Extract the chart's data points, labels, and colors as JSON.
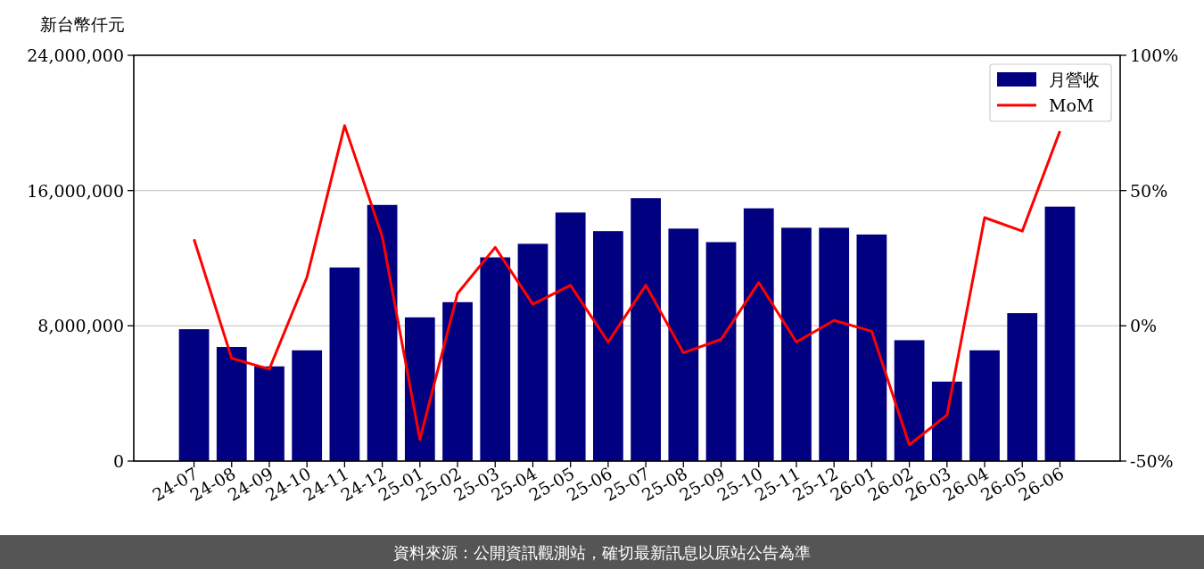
{
  "chart_data": {
    "type": "bar",
    "ylabel": "新台幣仟元",
    "categories": [
      "24-07",
      "24-08",
      "24-09",
      "24-10",
      "24-11",
      "24-12",
      "25-01",
      "25-02",
      "25-03",
      "25-04",
      "25-05",
      "25-06",
      "25-07",
      "25-08",
      "25-09",
      "25-10",
      "25-11",
      "25-12",
      "26-01",
      "26-02",
      "26-03",
      "26-04",
      "26-05",
      "26-06"
    ],
    "series": [
      {
        "name": "月營收",
        "color": "#000080",
        "values": [
          7800000,
          6750000,
          5600000,
          6550000,
          11450000,
          15150000,
          8500000,
          9400000,
          12050000,
          12850000,
          14700000,
          13600000,
          15550000,
          13750000,
          12950000,
          14950000,
          13800000,
          13800000,
          13400000,
          7150000,
          4700000,
          6550000,
          8750000,
          15050000
        ]
      },
      {
        "name": "MoM",
        "type": "line",
        "axis": "y2",
        "color": "#ff0000",
        "values": [
          32,
          -12,
          -16,
          18,
          74,
          33,
          -42,
          12,
          29,
          8,
          15,
          -6,
          15,
          -10,
          -5,
          16,
          -6,
          2,
          -2,
          -44,
          -33,
          40,
          35,
          72
        ]
      }
    ],
    "ylim": [
      0,
      24000000
    ],
    "yticks": [
      {
        "value": 0,
        "label": "0"
      },
      {
        "value": 8000000,
        "label": "8,000,000"
      },
      {
        "value": 16000000,
        "label": "16,000,000"
      },
      {
        "value": 24000000,
        "label": "24,000,000"
      }
    ],
    "y2lim": [
      -50,
      100
    ],
    "y2ticks": [
      {
        "value": -50,
        "label": "-50%"
      },
      {
        "value": 0,
        "label": "0%"
      },
      {
        "value": 50,
        "label": "50%"
      },
      {
        "value": 100,
        "label": "100%"
      }
    ],
    "grid": "y",
    "legend": "top right",
    "annotations": [
      "資料來源：公開資訊觀測站，確切最新訊息以原站公告為準"
    ]
  }
}
